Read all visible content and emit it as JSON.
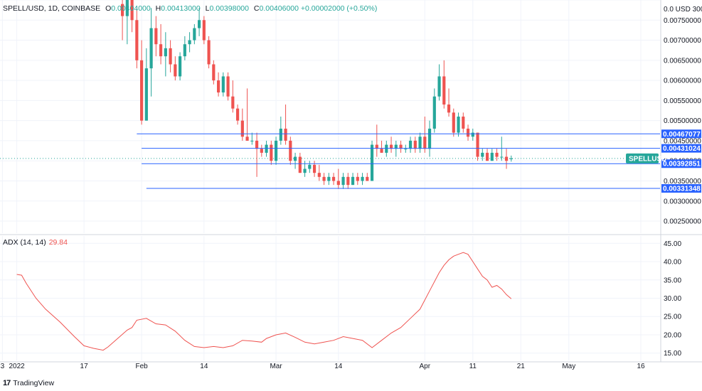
{
  "header": {
    "symbol": "SPELL/USD, 1D, COINBASE",
    "o_label": "O",
    "o_value": "0.00404000",
    "h_label": "H",
    "h_value": "0.00413000",
    "l_label": "L",
    "l_value": "0.00398000",
    "c_label": "C",
    "c_value": "0.00406000",
    "change": "+0.00002000 (+0.50%)"
  },
  "adx_header": {
    "label": "ADX (14, 14)",
    "value": "29.84"
  },
  "footer": {
    "brand": "TradingView"
  },
  "colors": {
    "up": "#26a69a",
    "down": "#ef5350",
    "hline": "#2962ff",
    "adx": "#ef5350",
    "grid": "#f0f3fa",
    "axis_text": "#131722"
  },
  "chart_data": [
    {
      "type": "candlestick",
      "title": "SPELL/USD, 1D, COINBASE",
      "y_axis_label": "USD",
      "ylim": [
        0.0022,
        0.008
      ],
      "y_ticks": [
        "0.00250000",
        "0.00300000",
        "0.00350000",
        "0.00400000",
        "0.00450000",
        "0.00500000",
        "0.00550000",
        "0.00600000",
        "0.00650000",
        "0.00700000",
        "0.00750000",
        "0.0 USD 300"
      ],
      "y_tick_values": [
        0.0025,
        0.003,
        0.0035,
        0.004,
        0.0045,
        0.005,
        0.0055,
        0.006,
        0.0065,
        0.007,
        0.0075,
        0.008
      ],
      "x_ticks": [
        "3",
        "2022",
        "17",
        "Feb",
        "14",
        "Mar",
        "14",
        "Apr",
        "11",
        "21",
        "May",
        "16"
      ],
      "x_tick_days": [
        -29,
        -26,
        -12,
        0,
        13,
        28,
        41,
        59,
        69,
        79,
        89,
        104
      ],
      "x_range_days": [
        -29.5,
        108
      ],
      "candles": [
        {
          "d": -4,
          "o": 0.0079,
          "h": 0.0082,
          "l": 0.007,
          "c": 0.0076
        },
        {
          "d": -3,
          "o": 0.0076,
          "h": 0.0082,
          "l": 0.0069,
          "c": 0.008
        },
        {
          "d": -2,
          "o": 0.008,
          "h": 0.0081,
          "l": 0.0072,
          "c": 0.0075
        },
        {
          "d": -1,
          "o": 0.0075,
          "h": 0.0078,
          "l": 0.0063,
          "c": 0.0065
        },
        {
          "d": 0,
          "o": 0.0065,
          "h": 0.007,
          "l": 0.0049,
          "c": 0.005
        },
        {
          "d": 1,
          "o": 0.005,
          "h": 0.0068,
          "l": 0.005,
          "c": 0.0063
        },
        {
          "d": 2,
          "o": 0.0063,
          "h": 0.0078,
          "l": 0.0056,
          "c": 0.0073
        },
        {
          "d": 3,
          "o": 0.0073,
          "h": 0.0076,
          "l": 0.0066,
          "c": 0.0069
        },
        {
          "d": 4,
          "o": 0.0069,
          "h": 0.0074,
          "l": 0.0064,
          "c": 0.0066
        },
        {
          "d": 5,
          "o": 0.0066,
          "h": 0.0072,
          "l": 0.0061,
          "c": 0.0068
        },
        {
          "d": 6,
          "o": 0.0068,
          "h": 0.007,
          "l": 0.0062,
          "c": 0.0064
        },
        {
          "d": 7,
          "o": 0.0064,
          "h": 0.0066,
          "l": 0.006,
          "c": 0.0061
        },
        {
          "d": 8,
          "o": 0.0061,
          "h": 0.0067,
          "l": 0.006,
          "c": 0.0066
        },
        {
          "d": 9,
          "o": 0.0066,
          "h": 0.0071,
          "l": 0.0065,
          "c": 0.0069
        },
        {
          "d": 10,
          "o": 0.0069,
          "h": 0.0072,
          "l": 0.0067,
          "c": 0.007
        },
        {
          "d": 11,
          "o": 0.007,
          "h": 0.0074,
          "l": 0.0069,
          "c": 0.0073
        },
        {
          "d": 12,
          "o": 0.0073,
          "h": 0.0078,
          "l": 0.0071,
          "c": 0.0075
        },
        {
          "d": 13,
          "o": 0.0075,
          "h": 0.0076,
          "l": 0.0069,
          "c": 0.007
        },
        {
          "d": 14,
          "o": 0.007,
          "h": 0.0071,
          "l": 0.0063,
          "c": 0.0064
        },
        {
          "d": 15,
          "o": 0.0064,
          "h": 0.0065,
          "l": 0.0059,
          "c": 0.006
        },
        {
          "d": 16,
          "o": 0.006,
          "h": 0.0062,
          "l": 0.0056,
          "c": 0.0057
        },
        {
          "d": 17,
          "o": 0.0057,
          "h": 0.0062,
          "l": 0.0056,
          "c": 0.0061
        },
        {
          "d": 18,
          "o": 0.0061,
          "h": 0.0062,
          "l": 0.0055,
          "c": 0.0056
        },
        {
          "d": 19,
          "o": 0.0056,
          "h": 0.006,
          "l": 0.0052,
          "c": 0.0053
        },
        {
          "d": 20,
          "o": 0.0053,
          "h": 0.0054,
          "l": 0.0049,
          "c": 0.005
        },
        {
          "d": 21,
          "o": 0.005,
          "h": 0.0053,
          "l": 0.0045,
          "c": 0.0046
        },
        {
          "d": 22,
          "o": 0.0046,
          "h": 0.0058,
          "l": 0.0045,
          "c": 0.0045
        },
        {
          "d": 23,
          "o": 0.0045,
          "h": 0.0047,
          "l": 0.0044,
          "c": 0.0045
        },
        {
          "d": 24,
          "o": 0.0045,
          "h": 0.0047,
          "l": 0.0036,
          "c": 0.0043
        },
        {
          "d": 25,
          "o": 0.0043,
          "h": 0.0044,
          "l": 0.0041,
          "c": 0.0042
        },
        {
          "d": 26,
          "o": 0.0042,
          "h": 0.0045,
          "l": 0.0041,
          "c": 0.0044
        },
        {
          "d": 27,
          "o": 0.0044,
          "h": 0.0045,
          "l": 0.0039,
          "c": 0.004
        },
        {
          "d": 28,
          "o": 0.004,
          "h": 0.0046,
          "l": 0.0039,
          "c": 0.0045
        },
        {
          "d": 29,
          "o": 0.0045,
          "h": 0.0051,
          "l": 0.0044,
          "c": 0.0048
        },
        {
          "d": 30,
          "o": 0.0048,
          "h": 0.0054,
          "l": 0.0044,
          "c": 0.0045
        },
        {
          "d": 31,
          "o": 0.0045,
          "h": 0.0046,
          "l": 0.0039,
          "c": 0.004
        },
        {
          "d": 32,
          "o": 0.004,
          "h": 0.0042,
          "l": 0.0038,
          "c": 0.0041
        },
        {
          "d": 33,
          "o": 0.0041,
          "h": 0.0042,
          "l": 0.0037,
          "c": 0.0037
        },
        {
          "d": 34,
          "o": 0.0037,
          "h": 0.004,
          "l": 0.0036,
          "c": 0.0038
        },
        {
          "d": 35,
          "o": 0.0038,
          "h": 0.004,
          "l": 0.0037,
          "c": 0.0039
        },
        {
          "d": 36,
          "o": 0.0039,
          "h": 0.004,
          "l": 0.0036,
          "c": 0.0037
        },
        {
          "d": 37,
          "o": 0.0037,
          "h": 0.0039,
          "l": 0.0035,
          "c": 0.0036
        },
        {
          "d": 38,
          "o": 0.0036,
          "h": 0.0037,
          "l": 0.0034,
          "c": 0.0035
        },
        {
          "d": 39,
          "o": 0.0035,
          "h": 0.0037,
          "l": 0.0034,
          "c": 0.0036
        },
        {
          "d": 40,
          "o": 0.0036,
          "h": 0.0037,
          "l": 0.0034,
          "c": 0.0035
        },
        {
          "d": 41,
          "o": 0.0035,
          "h": 0.0038,
          "l": 0.0033,
          "c": 0.0034
        },
        {
          "d": 42,
          "o": 0.0034,
          "h": 0.0037,
          "l": 0.0033,
          "c": 0.0036
        },
        {
          "d": 43,
          "o": 0.0036,
          "h": 0.0037,
          "l": 0.0033,
          "c": 0.0034
        },
        {
          "d": 44,
          "o": 0.0034,
          "h": 0.0037,
          "l": 0.0034,
          "c": 0.0036
        },
        {
          "d": 45,
          "o": 0.0036,
          "h": 0.0037,
          "l": 0.0034,
          "c": 0.0035
        },
        {
          "d": 46,
          "o": 0.0035,
          "h": 0.0037,
          "l": 0.0034,
          "c": 0.0036
        },
        {
          "d": 47,
          "o": 0.0036,
          "h": 0.0037,
          "l": 0.0035,
          "c": 0.0035
        },
        {
          "d": 48,
          "o": 0.0035,
          "h": 0.0045,
          "l": 0.0035,
          "c": 0.0044
        },
        {
          "d": 49,
          "o": 0.0044,
          "h": 0.0049,
          "l": 0.0041,
          "c": 0.0043
        },
        {
          "d": 50,
          "o": 0.0043,
          "h": 0.0045,
          "l": 0.0042,
          "c": 0.0042
        },
        {
          "d": 51,
          "o": 0.0042,
          "h": 0.0045,
          "l": 0.0041,
          "c": 0.0044
        },
        {
          "d": 52,
          "o": 0.0044,
          "h": 0.0046,
          "l": 0.0042,
          "c": 0.0043
        },
        {
          "d": 53,
          "o": 0.0043,
          "h": 0.0045,
          "l": 0.0041,
          "c": 0.0044
        },
        {
          "d": 54,
          "o": 0.0044,
          "h": 0.0045,
          "l": 0.0042,
          "c": 0.0043
        },
        {
          "d": 55,
          "o": 0.0043,
          "h": 0.0044,
          "l": 0.0042,
          "c": 0.0043
        },
        {
          "d": 56,
          "o": 0.0043,
          "h": 0.0046,
          "l": 0.0042,
          "c": 0.0045
        },
        {
          "d": 57,
          "o": 0.0045,
          "h": 0.0046,
          "l": 0.0042,
          "c": 0.0043
        },
        {
          "d": 58,
          "o": 0.0043,
          "h": 0.0047,
          "l": 0.0042,
          "c": 0.0046
        },
        {
          "d": 59,
          "o": 0.0046,
          "h": 0.0051,
          "l": 0.0042,
          "c": 0.0043
        },
        {
          "d": 60,
          "o": 0.0043,
          "h": 0.005,
          "l": 0.0041,
          "c": 0.0048
        },
        {
          "d": 61,
          "o": 0.0048,
          "h": 0.0058,
          "l": 0.0047,
          "c": 0.0056
        },
        {
          "d": 62,
          "o": 0.0056,
          "h": 0.0064,
          "l": 0.0055,
          "c": 0.0061
        },
        {
          "d": 63,
          "o": 0.0061,
          "h": 0.0065,
          "l": 0.0053,
          "c": 0.0054
        },
        {
          "d": 64,
          "o": 0.0054,
          "h": 0.0058,
          "l": 0.0051,
          "c": 0.0052
        },
        {
          "d": 65,
          "o": 0.0052,
          "h": 0.0053,
          "l": 0.0046,
          "c": 0.0047
        },
        {
          "d": 66,
          "o": 0.0047,
          "h": 0.0052,
          "l": 0.0046,
          "c": 0.0051
        },
        {
          "d": 67,
          "o": 0.0051,
          "h": 0.0052,
          "l": 0.0047,
          "c": 0.0048
        },
        {
          "d": 68,
          "o": 0.0048,
          "h": 0.0049,
          "l": 0.0045,
          "c": 0.0046
        },
        {
          "d": 69,
          "o": 0.0046,
          "h": 0.0048,
          "l": 0.0045,
          "c": 0.0047
        },
        {
          "d": 70,
          "o": 0.0047,
          "h": 0.0047,
          "l": 0.004,
          "c": 0.0041
        },
        {
          "d": 71,
          "o": 0.0041,
          "h": 0.0043,
          "l": 0.004,
          "c": 0.0042
        },
        {
          "d": 72,
          "o": 0.0042,
          "h": 0.0043,
          "l": 0.004,
          "c": 0.004
        },
        {
          "d": 73,
          "o": 0.004,
          "h": 0.0043,
          "l": 0.004,
          "c": 0.0042
        },
        {
          "d": 74,
          "o": 0.0042,
          "h": 0.0043,
          "l": 0.004,
          "c": 0.0041
        },
        {
          "d": 75,
          "o": 0.0041,
          "h": 0.0046,
          "l": 0.004,
          "c": 0.0041
        },
        {
          "d": 76,
          "o": 0.0041,
          "h": 0.0043,
          "l": 0.0038,
          "c": 0.004
        },
        {
          "d": 77,
          "o": 0.00404,
          "h": 0.00413,
          "l": 0.00398,
          "c": 0.00406
        }
      ],
      "horizontal_levels": [
        {
          "value": 0.00467077,
          "label": "0.00467077",
          "start_day": -1
        },
        {
          "value": 0.00431024,
          "label": "0.00431024",
          "start_day": 0
        },
        {
          "value": 0.00392851,
          "label": "0.00392851",
          "start_day": 0
        },
        {
          "value": 0.00331348,
          "label": "0.00331348",
          "start_day": 1
        }
      ],
      "last_price": {
        "value": 0.00406,
        "label": "SPELLUSD"
      }
    },
    {
      "type": "line",
      "title": "ADX (14, 14)",
      "ylim": [
        13,
        47
      ],
      "y_ticks": [
        "15.00",
        "20.00",
        "25.00",
        "30.00",
        "35.00",
        "40.00",
        "45.00"
      ],
      "y_tick_values": [
        15,
        20,
        25,
        30,
        35,
        40,
        45
      ],
      "series": [
        {
          "name": "ADX (14, 14)",
          "x": [
            -26,
            -25,
            -24,
            -22,
            -20,
            -17,
            -14,
            -12,
            -10,
            -8,
            -7,
            -5,
            -3,
            -2,
            -1,
            1,
            3,
            5,
            7,
            9,
            11,
            13,
            15,
            17,
            19,
            21,
            23,
            25,
            26,
            28,
            30,
            32,
            34,
            36,
            38,
            40,
            42,
            44,
            46,
            48,
            50,
            52,
            54,
            56,
            58,
            60,
            62,
            63,
            64,
            65,
            66,
            67,
            68,
            69,
            70,
            71,
            72,
            73,
            74,
            75,
            76,
            77
          ],
          "values": [
            36.5,
            36.3,
            34,
            30,
            27,
            23.5,
            19.5,
            17,
            16.3,
            15.8,
            16.7,
            19,
            21.3,
            22,
            24,
            24.5,
            23,
            22.7,
            21,
            18.5,
            16.8,
            16.5,
            16.8,
            16.5,
            17,
            18.5,
            18.3,
            18,
            19,
            20,
            20.5,
            19.3,
            18,
            17.5,
            18,
            18.5,
            19.5,
            19,
            18.5,
            16.5,
            18.5,
            20.5,
            22,
            24.5,
            27,
            32,
            37,
            39,
            40.5,
            41.5,
            42,
            42.5,
            42,
            40,
            38,
            36,
            35,
            33,
            33.5,
            32.5,
            31,
            29.84
          ]
        }
      ]
    }
  ]
}
